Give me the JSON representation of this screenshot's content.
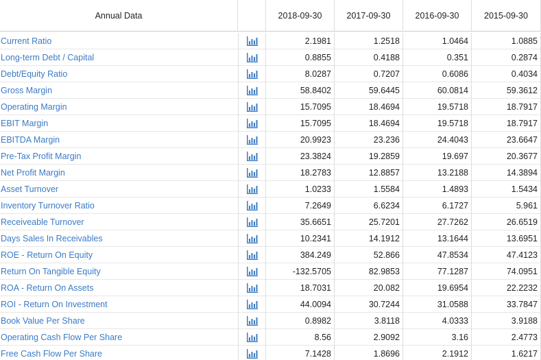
{
  "table": {
    "header": [
      "Annual Data",
      "2018-09-30",
      "2017-09-30",
      "2016-09-30",
      "2015-09-30"
    ],
    "rows": [
      [
        "Current Ratio",
        "2.1981",
        "1.2518",
        "1.0464",
        "1.0885"
      ],
      [
        "Long-term Debt / Capital",
        "0.8855",
        "0.4188",
        "0.351",
        "0.2874"
      ],
      [
        "Debt/Equity Ratio",
        "8.0287",
        "0.7207",
        "0.6086",
        "0.4034"
      ],
      [
        "Gross Margin",
        "58.8402",
        "59.6445",
        "60.0814",
        "59.3612"
      ],
      [
        "Operating Margin",
        "15.7095",
        "18.4694",
        "19.5718",
        "18.7917"
      ],
      [
        "EBIT Margin",
        "15.7095",
        "18.4694",
        "19.5718",
        "18.7917"
      ],
      [
        "EBITDA Margin",
        "20.9923",
        "23.236",
        "24.4043",
        "23.6647"
      ],
      [
        "Pre-Tax Profit Margin",
        "23.3824",
        "19.2859",
        "19.697",
        "20.3677"
      ],
      [
        "Net Profit Margin",
        "18.2783",
        "12.8857",
        "13.2188",
        "14.3894"
      ],
      [
        "Asset Turnover",
        "1.0233",
        "1.5584",
        "1.4893",
        "1.5434"
      ],
      [
        "Inventory Turnover Ratio",
        "7.2649",
        "6.6234",
        "6.1727",
        "5.961"
      ],
      [
        "Receiveable Turnover",
        "35.6651",
        "25.7201",
        "27.7262",
        "26.6519"
      ],
      [
        "Days Sales In Receivables",
        "10.2341",
        "14.1912",
        "13.1644",
        "13.6951"
      ],
      [
        "ROE - Return On Equity",
        "384.249",
        "52.866",
        "47.8534",
        "47.4123"
      ],
      [
        "Return On Tangible Equity",
        "-132.5705",
        "82.9853",
        "77.1287",
        "74.0951"
      ],
      [
        "ROA - Return On Assets",
        "18.7031",
        "20.082",
        "19.6954",
        "22.2232"
      ],
      [
        "ROI - Return On Investment",
        "44.0094",
        "30.7244",
        "31.0588",
        "33.7847"
      ],
      [
        "Book Value Per Share",
        "0.8982",
        "3.8118",
        "4.0333",
        "3.9188"
      ],
      [
        "Operating Cash Flow Per Share",
        "8.56",
        "2.9092",
        "3.16",
        "2.4773"
      ],
      [
        "Free Cash Flow Per Share",
        "7.1428",
        "1.8696",
        "2.1912",
        "1.6217"
      ]
    ]
  }
}
